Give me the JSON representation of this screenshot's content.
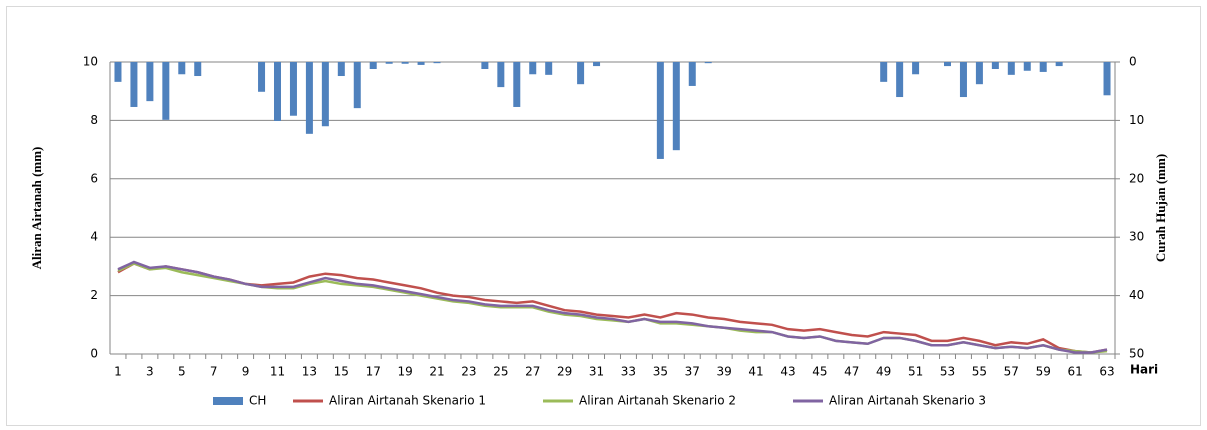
{
  "chart_data": {
    "type": "bar-line",
    "y_label": "Aliran Airtanah (mm)",
    "y2_label": "Curah Hujan (mm)",
    "x_label": "Hari",
    "categories": [
      1,
      null,
      3,
      null,
      5,
      null,
      7,
      null,
      9,
      null,
      11,
      null,
      13,
      null,
      15,
      null,
      17,
      null,
      19,
      null,
      21,
      null,
      23,
      null,
      25,
      null,
      27,
      null,
      29,
      null,
      31,
      null,
      33,
      null,
      35,
      null,
      37,
      null,
      39,
      null,
      41,
      null,
      43,
      null,
      45,
      null,
      47,
      null,
      49,
      null,
      51,
      null,
      53,
      null,
      55,
      null,
      57,
      null,
      59,
      null,
      61,
      null,
      63
    ],
    "ylim": [
      0,
      10
    ],
    "yticks": [
      0,
      2,
      4,
      6,
      8,
      10
    ],
    "y2lim": [
      0,
      50
    ],
    "y2ticks": [
      0,
      10,
      20,
      30,
      40,
      50
    ],
    "y2_inverted": true,
    "grid": true,
    "legend": "bottom",
    "series": [
      {
        "name": "CH",
        "type": "bar",
        "axis": "y2",
        "color": "#4f81bd",
        "values": [
          3.4,
          7.7,
          6.7,
          9.9,
          2.1,
          2.4,
          0,
          0,
          0,
          5.1,
          10.1,
          9.2,
          12.3,
          11.0,
          2.4,
          7.9,
          1.2,
          0.3,
          0.3,
          0.5,
          0.2,
          0,
          0,
          1.2,
          4.3,
          7.7,
          2.1,
          2.2,
          0,
          3.8,
          0.7,
          0,
          0,
          0,
          16.6,
          15.1,
          4.1,
          0.2,
          0,
          0,
          0,
          0,
          0,
          0,
          0,
          0,
          0,
          0,
          3.4,
          6.0,
          2.1,
          0,
          0.7,
          6.0,
          3.8,
          1.2,
          2.2,
          1.5,
          1.7,
          0.7,
          0,
          0,
          5.7
        ]
      },
      {
        "name": "Aliran Airtanah Skenario 1",
        "type": "line",
        "color": "#c0504d",
        "values": [
          2.8,
          3.1,
          2.9,
          3.0,
          2.9,
          2.8,
          2.65,
          2.55,
          2.4,
          2.35,
          2.4,
          2.45,
          2.65,
          2.75,
          2.7,
          2.6,
          2.55,
          2.45,
          2.35,
          2.25,
          2.1,
          2.0,
          1.95,
          1.85,
          1.8,
          1.75,
          1.8,
          1.65,
          1.5,
          1.45,
          1.35,
          1.3,
          1.25,
          1.35,
          1.25,
          1.4,
          1.35,
          1.25,
          1.2,
          1.1,
          1.05,
          1.0,
          0.85,
          0.8,
          0.85,
          0.75,
          0.65,
          0.6,
          0.75,
          0.7,
          0.65,
          0.45,
          0.45,
          0.55,
          0.45,
          0.3,
          0.4,
          0.35,
          0.5,
          0.2,
          0.1,
          0.05,
          0.15
        ]
      },
      {
        "name": "Aliran Airtanah Skenario 2",
        "type": "line",
        "color": "#9bbb59",
        "values": [
          2.85,
          3.1,
          2.9,
          2.95,
          2.8,
          2.7,
          2.6,
          2.5,
          2.4,
          2.3,
          2.25,
          2.25,
          2.4,
          2.5,
          2.4,
          2.35,
          2.3,
          2.2,
          2.1,
          2.0,
          1.9,
          1.8,
          1.75,
          1.65,
          1.6,
          1.6,
          1.6,
          1.45,
          1.35,
          1.3,
          1.2,
          1.15,
          1.1,
          1.2,
          1.05,
          1.05,
          1.0,
          0.95,
          0.9,
          0.8,
          0.75,
          0.75,
          0.6,
          0.55,
          0.6,
          0.45,
          0.4,
          0.35,
          0.55,
          0.55,
          0.45,
          0.3,
          0.3,
          0.4,
          0.3,
          0.2,
          0.25,
          0.2,
          0.3,
          0.15,
          0.1,
          0.05,
          0.1
        ]
      },
      {
        "name": "Aliran Airtanah Skenario 3",
        "type": "line",
        "color": "#8064a2",
        "values": [
          2.9,
          3.15,
          2.95,
          3.0,
          2.9,
          2.8,
          2.65,
          2.55,
          2.4,
          2.3,
          2.3,
          2.3,
          2.45,
          2.6,
          2.5,
          2.4,
          2.35,
          2.25,
          2.15,
          2.05,
          1.95,
          1.85,
          1.8,
          1.7,
          1.65,
          1.65,
          1.65,
          1.5,
          1.4,
          1.35,
          1.25,
          1.2,
          1.1,
          1.2,
          1.1,
          1.1,
          1.05,
          0.95,
          0.9,
          0.85,
          0.8,
          0.75,
          0.6,
          0.55,
          0.6,
          0.45,
          0.4,
          0.35,
          0.55,
          0.55,
          0.45,
          0.3,
          0.3,
          0.4,
          0.3,
          0.2,
          0.25,
          0.2,
          0.3,
          0.15,
          0.05,
          0.05,
          0.15
        ]
      }
    ]
  }
}
